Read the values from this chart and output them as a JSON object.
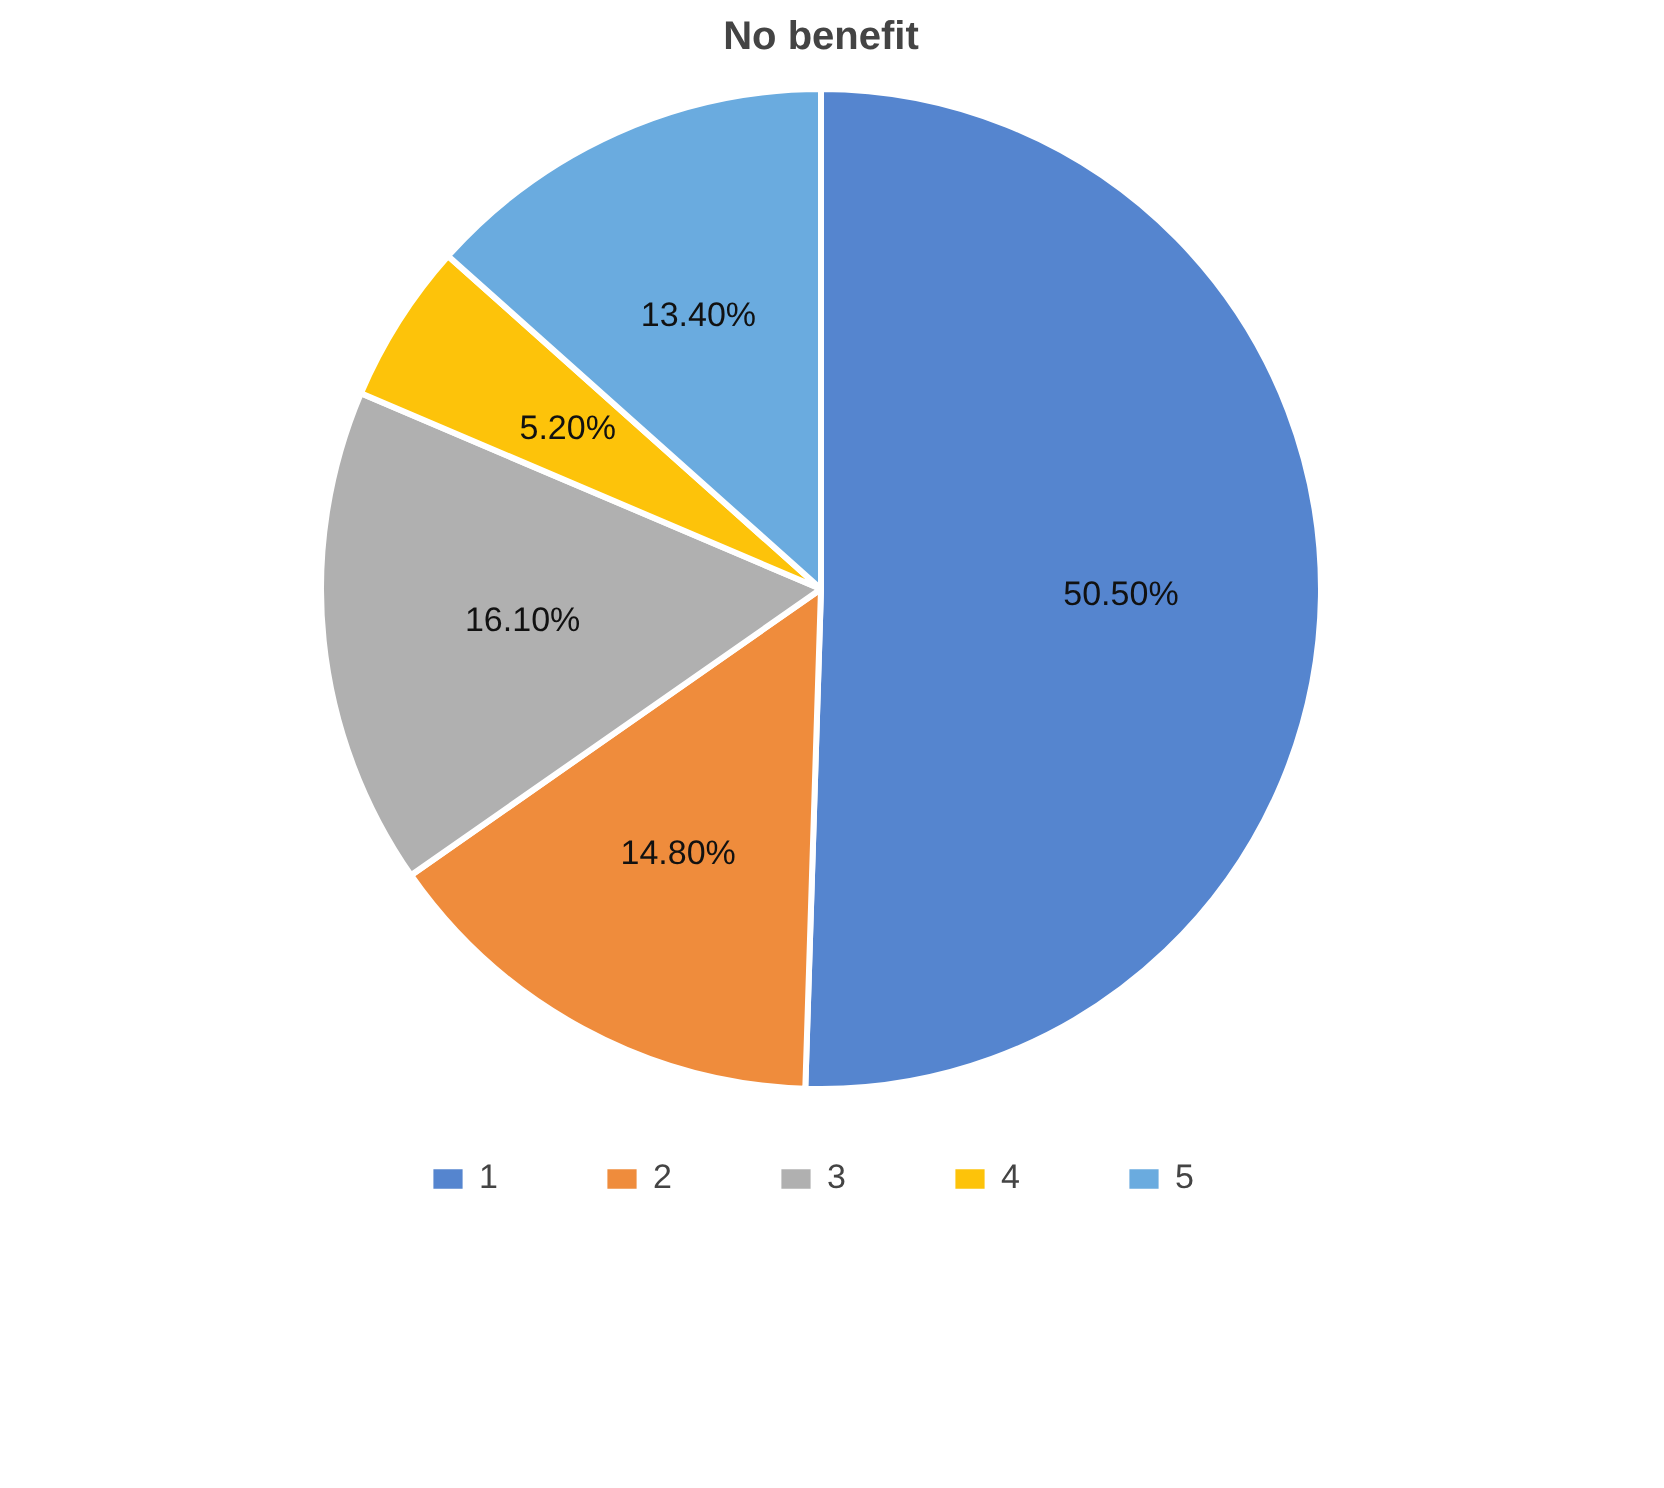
{
  "chart_data": {
    "type": "pie",
    "title": "No benefit",
    "categories": [
      "1",
      "2",
      "3",
      "4",
      "5"
    ],
    "values": [
      50.5,
      14.8,
      16.1,
      5.2,
      13.4
    ],
    "value_labels": [
      "50.50%",
      "14.80%",
      "16.10%",
      "5.20%",
      "13.40%"
    ],
    "colors": [
      "#5585cf",
      "#ef8c3c",
      "#b0b0b0",
      "#fdc30a",
      "#6aabdf"
    ],
    "legend": "bottom"
  }
}
